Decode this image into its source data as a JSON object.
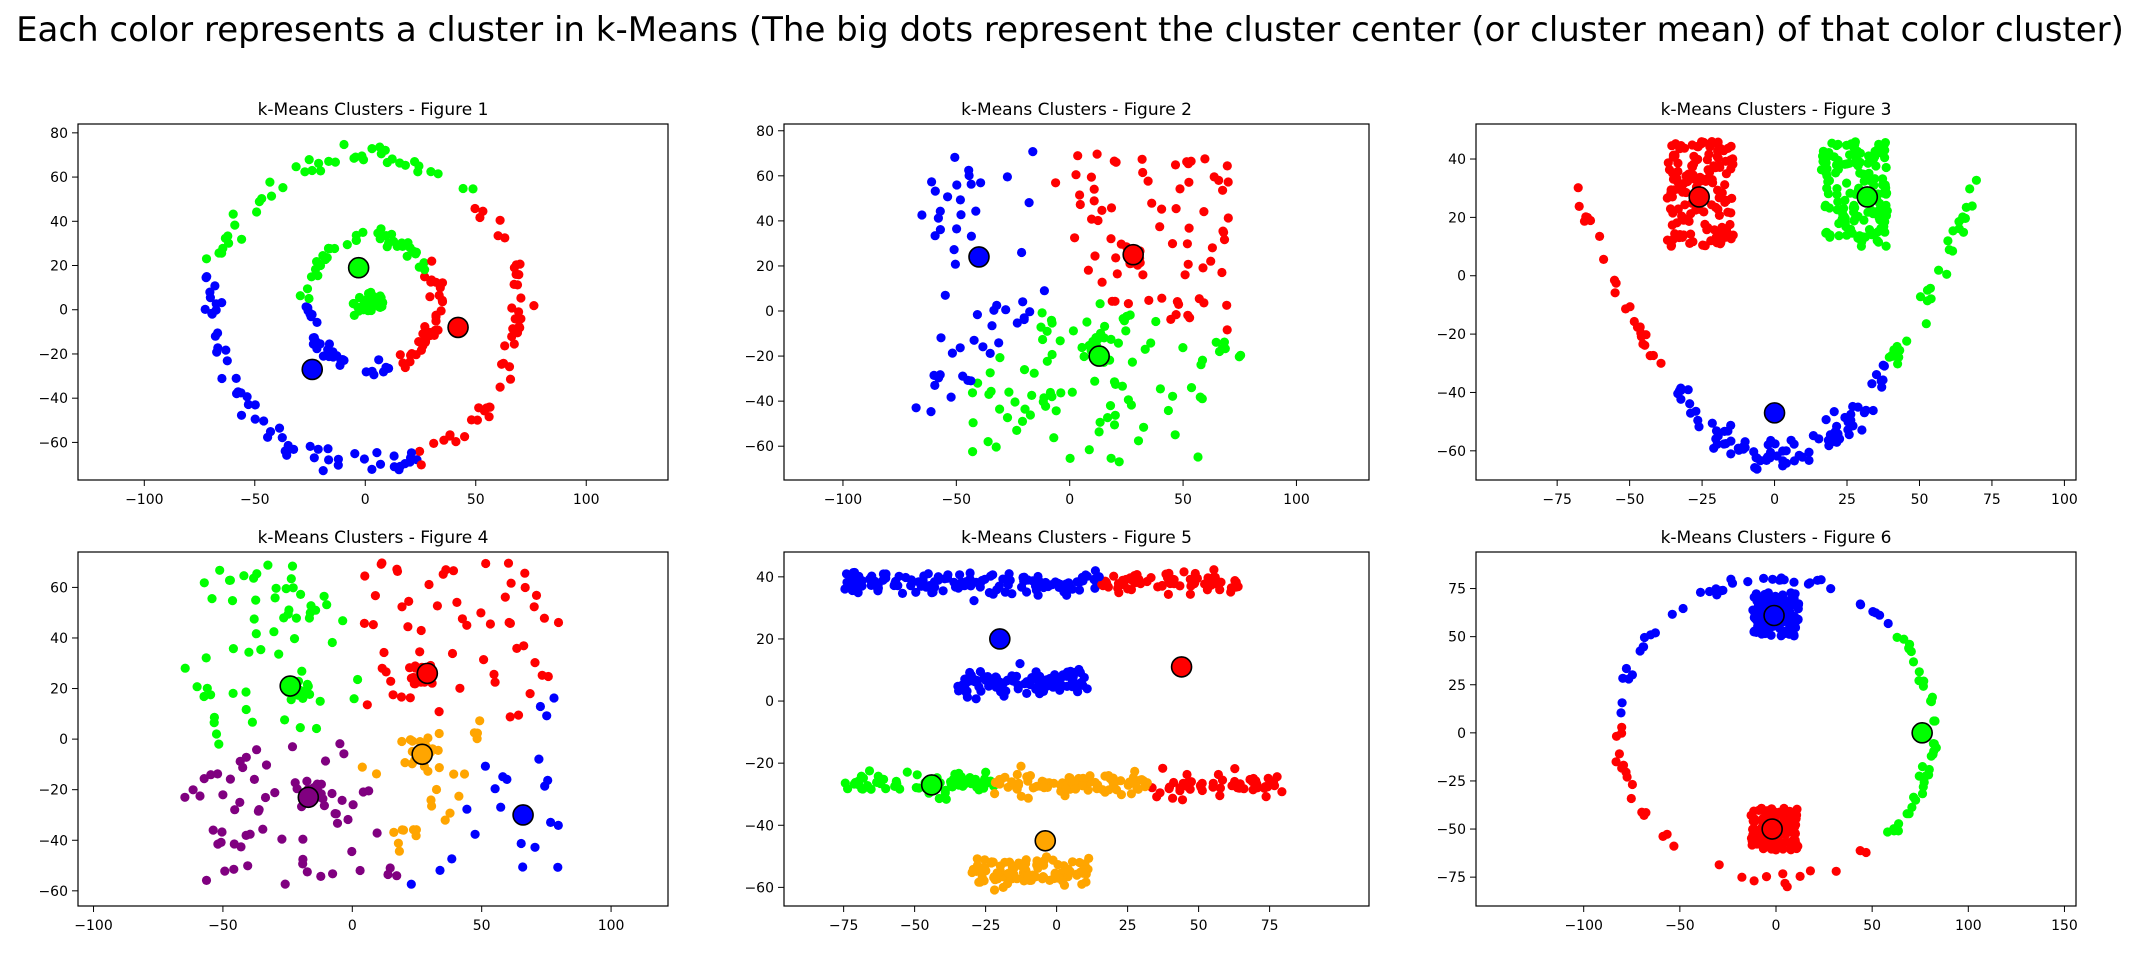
{
  "suptitle": "Each color represents a cluster in k-Means (The big dots represent the cluster center (or cluster mean) of that color cluster)",
  "colors": {
    "red": "#ff0000",
    "green": "#00ff00",
    "blue": "#0000ff",
    "orange": "#ffa500",
    "purple": "#800080"
  },
  "chart_data": [
    {
      "type": "scatter",
      "title": "k-Means Clusters - Figure 1",
      "xlabel": "",
      "ylabel": "",
      "xlim": [
        -130,
        137
      ],
      "ylim": [
        -77,
        84
      ],
      "xticks": [
        -100,
        -50,
        0,
        50,
        100
      ],
      "yticks": [
        -60,
        -40,
        -20,
        0,
        20,
        40,
        60,
        80
      ],
      "centers": [
        {
          "color": "green",
          "x": -3,
          "y": 19
        },
        {
          "color": "red",
          "x": 42,
          "y": -8
        },
        {
          "color": "blue",
          "x": -24,
          "y": -27
        }
      ],
      "generators": [
        {
          "kind": "ring",
          "cx": 0,
          "cy": 0,
          "r": 70,
          "jitter": 3,
          "n": 150,
          "a0": 0,
          "a1": 360
        },
        {
          "kind": "ring",
          "cx": 3,
          "cy": 3,
          "r": 30,
          "jitter": 2,
          "n": 110,
          "a0": 0,
          "a1": 360
        },
        {
          "kind": "blob",
          "cx": 3,
          "cy": 3,
          "sx": 4,
          "sy": 3,
          "n": 40
        }
      ],
      "assignment": "nearest"
    },
    {
      "type": "scatter",
      "title": "k-Means Clusters - Figure 2",
      "xlabel": "",
      "ylabel": "",
      "xlim": [
        -126,
        132
      ],
      "ylim": [
        -75,
        83
      ],
      "xticks": [
        -100,
        -50,
        0,
        50,
        100
      ],
      "yticks": [
        -60,
        -40,
        -20,
        0,
        20,
        40,
        60,
        80
      ],
      "centers": [
        {
          "color": "blue",
          "x": -40,
          "y": 24
        },
        {
          "color": "red",
          "x": 28,
          "y": 25
        },
        {
          "color": "green",
          "x": 13,
          "y": -20
        }
      ],
      "generators": [
        {
          "kind": "uniform",
          "x0": -68,
          "x1": -5,
          "y0": -45,
          "y1": 72,
          "n": 65
        },
        {
          "kind": "uniform",
          "x0": 0,
          "x1": 72,
          "y0": -5,
          "y1": 70,
          "n": 80
        },
        {
          "kind": "uniform",
          "x0": -45,
          "x1": 78,
          "y0": -68,
          "y1": -5,
          "n": 75
        },
        {
          "kind": "blob",
          "cx": 27,
          "cy": 24,
          "sx": 3,
          "sy": 2,
          "n": 12
        },
        {
          "kind": "blob",
          "cx": 13,
          "cy": -14,
          "sx": 4,
          "sy": 3,
          "n": 14
        }
      ],
      "assignment": "nearest"
    },
    {
      "type": "scatter",
      "title": "k-Means Clusters - Figure 3",
      "xlabel": "",
      "ylabel": "",
      "xlim": [
        -103,
        104
      ],
      "ylim": [
        -70,
        52
      ],
      "xticks": [
        -75,
        -50,
        -25,
        0,
        25,
        50,
        75,
        100
      ],
      "yticks": [
        -60,
        -40,
        -20,
        0,
        20,
        40
      ],
      "centers": [
        {
          "color": "red",
          "x": -26,
          "y": 27
        },
        {
          "color": "green",
          "x": 32,
          "y": 27
        },
        {
          "color": "blue",
          "x": 0,
          "y": -47
        }
      ],
      "generators": [
        {
          "kind": "rect",
          "x0": -37,
          "x1": -14,
          "y0": 10,
          "y1": 46,
          "n": 150
        },
        {
          "kind": "rect",
          "x0": 16,
          "x1": 39,
          "y0": 10,
          "y1": 46,
          "n": 150
        },
        {
          "kind": "parabola",
          "x0": -68,
          "x1": 71,
          "a": 0.0195,
          "b": -62,
          "jitter": 3,
          "n": 150
        }
      ],
      "assignment": "parabola"
    },
    {
      "type": "scatter",
      "title": "k-Means Clusters - Figure 4",
      "xlabel": "",
      "ylabel": "",
      "xlim": [
        -106,
        122
      ],
      "ylim": [
        -66,
        74
      ],
      "xticks": [
        -100,
        -50,
        0,
        50,
        100
      ],
      "yticks": [
        -60,
        -40,
        -20,
        0,
        20,
        40,
        60
      ],
      "centers": [
        {
          "color": "green",
          "x": -24,
          "y": 21
        },
        {
          "color": "red",
          "x": 29,
          "y": 26
        },
        {
          "color": "orange",
          "x": 27,
          "y": -6
        },
        {
          "color": "purple",
          "x": -17,
          "y": -23
        },
        {
          "color": "blue",
          "x": 66,
          "y": -30
        }
      ],
      "generators": [
        {
          "kind": "uniform",
          "x0": -65,
          "x1": 80,
          "y0": -58,
          "y1": 70,
          "n": 230
        },
        {
          "kind": "blob",
          "cx": -22,
          "cy": 20,
          "sx": 3,
          "sy": 3,
          "n": 18
        },
        {
          "kind": "blob",
          "cx": 27,
          "cy": 25,
          "sx": 3,
          "sy": 3,
          "n": 18
        },
        {
          "kind": "blob",
          "cx": 27,
          "cy": -6,
          "sx": 3,
          "sy": 3,
          "n": 18
        },
        {
          "kind": "blob",
          "cx": -15,
          "cy": -21,
          "sx": 3,
          "sy": 3,
          "n": 18
        }
      ],
      "assignment": "nearest"
    },
    {
      "type": "scatter",
      "title": "k-Means Clusters - Figure 5",
      "xlabel": "",
      "ylabel": "",
      "xlim": [
        -96,
        110
      ],
      "ylim": [
        -66,
        48
      ],
      "xticks": [
        -75,
        -50,
        -25,
        0,
        25,
        50,
        75
      ],
      "yticks": [
        -60,
        -40,
        -20,
        0,
        20,
        40
      ],
      "centers": [
        {
          "color": "blue",
          "x": -20,
          "y": 20
        },
        {
          "color": "red",
          "x": 44,
          "y": 11
        },
        {
          "color": "green",
          "x": -44,
          "y": -27
        },
        {
          "color": "orange",
          "x": -4,
          "y": -45
        }
      ],
      "generators": [
        {
          "kind": "band",
          "x0": -75,
          "x1": 65,
          "y": 38,
          "sy": 1.8,
          "n": 210
        },
        {
          "kind": "band",
          "x0": -35,
          "x1": 12,
          "y": 6,
          "sy": 2.2,
          "n": 110
        },
        {
          "kind": "band",
          "x0": -75,
          "x1": 80,
          "y": -27,
          "sy": 1.8,
          "n": 220
        },
        {
          "kind": "band",
          "x0": -30,
          "x1": 12,
          "y": -55,
          "sy": 2.2,
          "n": 110
        }
      ],
      "assignment": "bands"
    },
    {
      "type": "scatter",
      "title": "k-Means Clusters - Figure 6",
      "xlabel": "",
      "ylabel": "",
      "xlim": [
        -156,
        156
      ],
      "ylim": [
        -90,
        94
      ],
      "xticks": [
        -100,
        -50,
        0,
        50,
        100,
        150
      ],
      "yticks": [
        -75,
        -50,
        -25,
        0,
        25,
        50,
        75
      ],
      "centers": [
        {
          "color": "blue",
          "x": -1,
          "y": 61
        },
        {
          "color": "red",
          "x": -2,
          "y": -50
        },
        {
          "color": "green",
          "x": 76,
          "y": 0
        }
      ],
      "generators": [
        {
          "kind": "ellipse",
          "cx": 0,
          "cy": 2,
          "rx": 82,
          "ry": 78,
          "jitter": 1.5,
          "n": 110,
          "a0": 0,
          "a1": 360
        },
        {
          "kind": "rect",
          "x0": -12,
          "x1": 12,
          "y0": 50,
          "y1": 73,
          "n": 130
        },
        {
          "kind": "rect",
          "x0": -13,
          "x1": 12,
          "y0": -61,
          "y1": -39,
          "n": 130
        }
      ],
      "assignment": "nearest"
    }
  ]
}
